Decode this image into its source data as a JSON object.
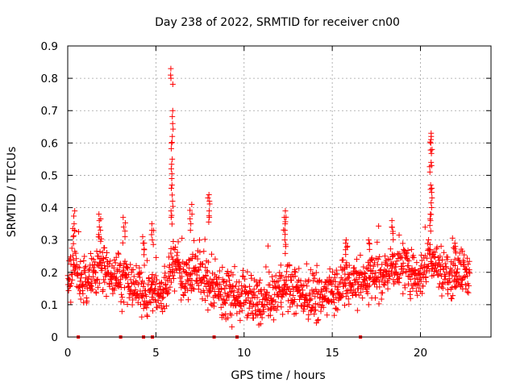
{
  "chart_data": {
    "type": "scatter",
    "title": "Day 238 of 2022, SRMTID for receiver cn00",
    "xlabel": "GPS time / hours",
    "ylabel": "SRMTID / TECUs",
    "xlim": [
      0,
      24
    ],
    "ylim": [
      0,
      0.9
    ],
    "x_ticks": [
      0,
      5,
      10,
      15,
      20
    ],
    "x_tick_labels": [
      "0",
      "5",
      "10",
      "15",
      "20"
    ],
    "y_ticks": [
      0,
      0.1,
      0.2,
      0.3,
      0.4,
      0.5,
      0.6,
      0.7,
      0.8,
      0.9
    ],
    "y_tick_labels": [
      "0",
      "0.1",
      "0.2",
      "0.3",
      "0.4",
      "0.5",
      "0.6",
      "0.7",
      "0.8",
      "0.9"
    ],
    "grid": true,
    "marker": "+",
    "color": "#ff0000",
    "series": [
      {
        "name": "SRMTID",
        "trend_x": [
          0,
          0.3,
          0.5,
          1.0,
          1.5,
          2.0,
          2.5,
          3.0,
          3.5,
          4.0,
          4.5,
          5.0,
          5.5,
          6.0,
          6.5,
          7.0,
          7.5,
          8.0,
          8.5,
          9.0,
          9.5,
          10.0,
          10.5,
          11.0,
          11.5,
          12.0,
          12.5,
          13.0,
          13.5,
          14.0,
          14.5,
          15.0,
          15.5,
          16.0,
          16.5,
          17.0,
          17.5,
          18.0,
          18.5,
          19.0,
          19.5,
          20.0,
          20.5,
          21.0,
          21.5,
          22.0,
          22.5,
          22.8
        ],
        "trend_y": [
          0.17,
          0.22,
          0.2,
          0.15,
          0.2,
          0.22,
          0.2,
          0.18,
          0.16,
          0.15,
          0.13,
          0.15,
          0.12,
          0.24,
          0.18,
          0.2,
          0.2,
          0.16,
          0.15,
          0.13,
          0.11,
          0.13,
          0.11,
          0.1,
          0.12,
          0.14,
          0.15,
          0.14,
          0.13,
          0.12,
          0.13,
          0.15,
          0.16,
          0.18,
          0.17,
          0.18,
          0.2,
          0.19,
          0.22,
          0.21,
          0.2,
          0.19,
          0.25,
          0.22,
          0.19,
          0.2,
          0.2,
          0.2
        ],
        "peaks": [
          {
            "x": 0.35,
            "values": [
              0.39,
              0.35,
              0.33,
              0.31
            ]
          },
          {
            "x": 1.8,
            "values": [
              0.38,
              0.36,
              0.33,
              0.31
            ]
          },
          {
            "x": 3.2,
            "values": [
              0.37,
              0.34,
              0.31
            ]
          },
          {
            "x": 4.3,
            "values": [
              0.31,
              0.29,
              0.27
            ]
          },
          {
            "x": 4.8,
            "values": [
              0.35,
              0.33,
              0.3
            ]
          },
          {
            "x": 5.9,
            "values": [
              0.83,
              0.8,
              0.7,
              0.66,
              0.62,
              0.6,
              0.55,
              0.52,
              0.49,
              0.46,
              0.42,
              0.39,
              0.37
            ]
          },
          {
            "x": 7.0,
            "values": [
              0.41,
              0.38,
              0.35
            ]
          },
          {
            "x": 8.0,
            "values": [
              0.44,
              0.43,
              0.39,
              0.37
            ]
          },
          {
            "x": 12.3,
            "values": [
              0.39,
              0.37,
              0.35,
              0.33,
              0.3,
              0.28
            ]
          },
          {
            "x": 15.8,
            "values": [
              0.3,
              0.29,
              0.27
            ]
          },
          {
            "x": 17.1,
            "values": [
              0.3,
              0.29
            ]
          },
          {
            "x": 18.4,
            "values": [
              0.36,
              0.34,
              0.32
            ]
          },
          {
            "x": 20.6,
            "values": [
              0.63,
              0.62,
              0.6,
              0.58,
              0.54,
              0.53,
              0.47,
              0.46,
              0.43,
              0.4,
              0.38,
              0.36
            ]
          },
          {
            "x": 22.0,
            "values": [
              0.29,
              0.28,
              0.26
            ]
          }
        ],
        "zero_markers_x": [
          0.6,
          3.0,
          4.3,
          4.8,
          8.3,
          9.6,
          16.6
        ]
      }
    ]
  }
}
